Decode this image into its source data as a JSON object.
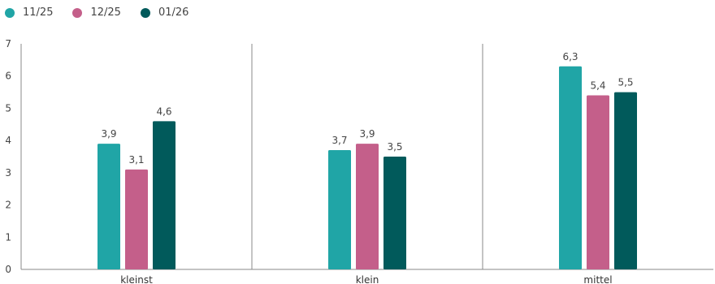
{
  "chart_data": {
    "type": "bar",
    "categories": [
      "kleinst",
      "klein",
      "mittel"
    ],
    "series": [
      {
        "name": "11/25",
        "color": "#20a5a6",
        "values": [
          3.9,
          3.7,
          6.3
        ],
        "labels": [
          "3,9",
          "3,7",
          "6,3"
        ]
      },
      {
        "name": "12/25",
        "color": "#c45f8a",
        "values": [
          3.1,
          3.9,
          5.4
        ],
        "labels": [
          "3,1",
          "3,9",
          "5,4"
        ]
      },
      {
        "name": "01/26",
        "color": "#015a5b",
        "values": [
          4.6,
          3.5,
          5.5
        ],
        "labels": [
          "4,6",
          "3,5",
          "5,5"
        ]
      }
    ],
    "ylim": [
      0,
      7
    ],
    "yticks": [
      "0",
      "1",
      "2",
      "3",
      "4",
      "5",
      "6",
      "7"
    ],
    "legend_position": "top-left",
    "grid": false
  }
}
